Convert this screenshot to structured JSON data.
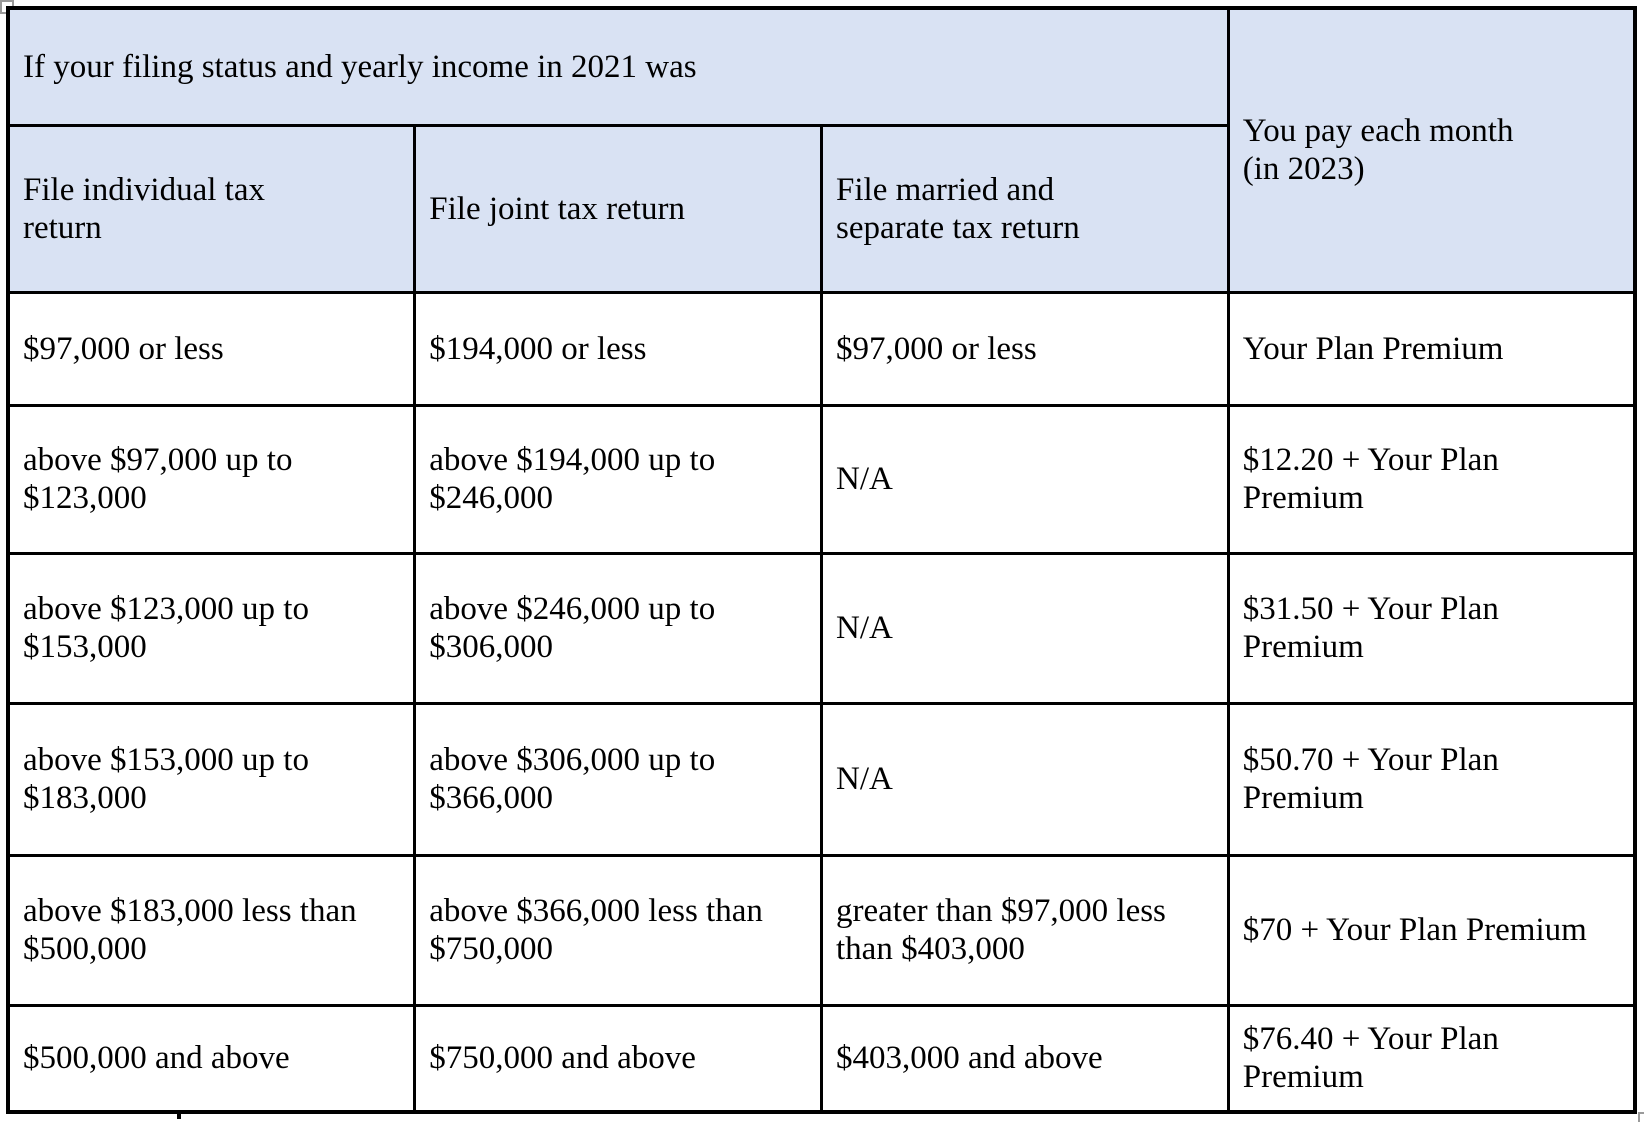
{
  "table": {
    "header": {
      "filing_status_title": "If your filing status and yearly income in 2021 was",
      "columns": [
        "File individual tax return",
        "File joint tax return",
        "File married and separate tax return"
      ],
      "pay_column": "You pay each month (in 2023)"
    },
    "rows": [
      {
        "individual": "$97,000 or less",
        "joint": "$194,000 or less",
        "married_separate": "$97,000 or less",
        "you_pay": "Your Plan Premium"
      },
      {
        "individual": "above $97,000 up to $123,000",
        "joint": "above $194,000 up to $246,000",
        "married_separate": "N/A",
        "you_pay": "$12.20 + Your Plan Premium"
      },
      {
        "individual": "above $123,000 up to $153,000",
        "joint": "above $246,000 up to $306,000",
        "married_separate": "N/A",
        "you_pay": "$31.50 + Your Plan Premium"
      },
      {
        "individual": "above $153,000 up to $183,000",
        "joint": "above $306,000 up to $366,000",
        "married_separate": "N/A",
        "you_pay": "$50.70 + Your Plan Premium"
      },
      {
        "individual": "above $183,000 less than $500,000",
        "joint": "above $366,000 less than $750,000",
        "married_separate": "greater than $97,000 less than $403,000",
        "you_pay": "$70 + Your Plan Premium"
      },
      {
        "individual": "$500,000 and above",
        "joint": "$750,000 and above",
        "married_separate": "$403,000 and above",
        "you_pay": "$76.40 + Your Plan Premium"
      }
    ],
    "colors": {
      "header_bg": "#d9e2f3",
      "border": "#000000"
    }
  }
}
